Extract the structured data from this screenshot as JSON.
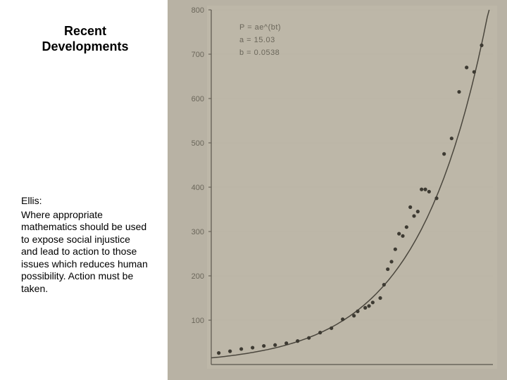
{
  "slide": {
    "title_line1": "Recent",
    "title_line2": "Developments"
  },
  "quote": {
    "author": "Ellis:",
    "text": "Where appropriate mathematics should be used to expose social injustice and lead to action to those issues which reduces human possibility. Action must be taken."
  },
  "chart": {
    "type": "scatter",
    "background_color": "#b8b2a4",
    "plot_background_color": "#c6c0b3",
    "axis_color": "#5a564d",
    "curve_color": "#4a463d",
    "gridline_color": "#b0ab9e",
    "point_color": "#3d3a32",
    "text_color": "#6a665a",
    "tick_fontsize": 11,
    "equation_fontsize": 11,
    "equation_lines": [
      "P  =  ae^(bt)",
      "a  =  15.03",
      "b  =  0.0538"
    ],
    "ylim": [
      0,
      800
    ],
    "ytick_step": 100,
    "ytick_labels": [
      "100",
      "200",
      "300",
      "400",
      "500",
      "600",
      "700",
      "800"
    ],
    "xlim": [
      0,
      75
    ],
    "points": [
      {
        "x": 2,
        "y": 26
      },
      {
        "x": 5,
        "y": 30
      },
      {
        "x": 8,
        "y": 35
      },
      {
        "x": 11,
        "y": 38
      },
      {
        "x": 14,
        "y": 42
      },
      {
        "x": 17,
        "y": 44
      },
      {
        "x": 20,
        "y": 48
      },
      {
        "x": 23,
        "y": 53
      },
      {
        "x": 26,
        "y": 60
      },
      {
        "x": 29,
        "y": 72
      },
      {
        "x": 32,
        "y": 82
      },
      {
        "x": 35,
        "y": 102
      },
      {
        "x": 38,
        "y": 110
      },
      {
        "x": 39,
        "y": 120
      },
      {
        "x": 41,
        "y": 128
      },
      {
        "x": 42,
        "y": 132
      },
      {
        "x": 43,
        "y": 140
      },
      {
        "x": 45,
        "y": 150
      },
      {
        "x": 46,
        "y": 180
      },
      {
        "x": 47,
        "y": 215
      },
      {
        "x": 48,
        "y": 232
      },
      {
        "x": 49,
        "y": 260
      },
      {
        "x": 50,
        "y": 295
      },
      {
        "x": 51,
        "y": 290
      },
      {
        "x": 52,
        "y": 310
      },
      {
        "x": 53,
        "y": 355
      },
      {
        "x": 54,
        "y": 335
      },
      {
        "x": 55,
        "y": 345
      },
      {
        "x": 56,
        "y": 395
      },
      {
        "x": 57,
        "y": 395
      },
      {
        "x": 58,
        "y": 390
      },
      {
        "x": 60,
        "y": 375
      },
      {
        "x": 62,
        "y": 475
      },
      {
        "x": 64,
        "y": 510
      },
      {
        "x": 66,
        "y": 615
      },
      {
        "x": 68,
        "y": 670
      },
      {
        "x": 70,
        "y": 660
      },
      {
        "x": 72,
        "y": 720
      }
    ],
    "curve_width": 1.5,
    "point_radius": 2.6
  }
}
